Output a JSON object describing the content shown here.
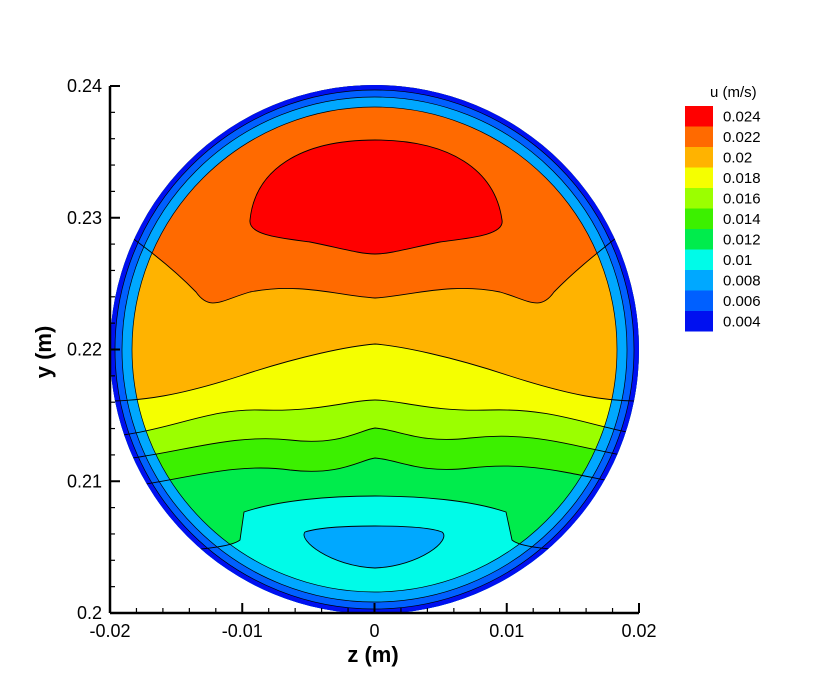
{
  "chart_data": {
    "type": "contour",
    "xlabel": "z  (m)",
    "ylabel": "y  (m)",
    "xlim": [
      -0.02,
      0.02
    ],
    "ylim": [
      0.2,
      0.24
    ],
    "x_ticks": [
      "-0.02",
      "-0.01",
      "0",
      "0.01",
      "0.02"
    ],
    "y_ticks": [
      "0.2",
      "0.21",
      "0.22",
      "0.23",
      "0.24"
    ],
    "domain": {
      "shape": "circle",
      "center_z": 0,
      "center_y": 0.22,
      "radius": 0.02
    },
    "legend": {
      "title": "u  (m/s)",
      "placement": "top-right",
      "levels": [
        {
          "value": "0.024",
          "color": "#ff0000"
        },
        {
          "value": "0.022",
          "color": "#ff6a00"
        },
        {
          "value": "0.02",
          "color": "#ffb300"
        },
        {
          "value": "0.018",
          "color": "#f5ff00"
        },
        {
          "value": "0.016",
          "color": "#9bff00"
        },
        {
          "value": "0.014",
          "color": "#3cf000"
        },
        {
          "value": "0.012",
          "color": "#00ec4c"
        },
        {
          "value": "0.01",
          "color": "#00fbe8"
        },
        {
          "value": "0.008",
          "color": "#00a8ff"
        },
        {
          "value": "0.006",
          "color": "#0060ff"
        },
        {
          "value": "0.004",
          "color": "#0010f0"
        }
      ]
    },
    "contour_boundaries_y_at_center": [
      0.2036,
      0.2053,
      0.208,
      0.2112,
      0.2135,
      0.2159,
      0.2182,
      0.2205,
      0.2219,
      0.2232,
      0.2243,
      0.2273,
      0.2359
    ],
    "contour_boundaries_y_at_z_0.01": [
      0.204,
      0.2068,
      0.2105,
      0.2135,
      0.2155,
      0.2175,
      0.2196,
      0.2209,
      0.2214
    ]
  }
}
